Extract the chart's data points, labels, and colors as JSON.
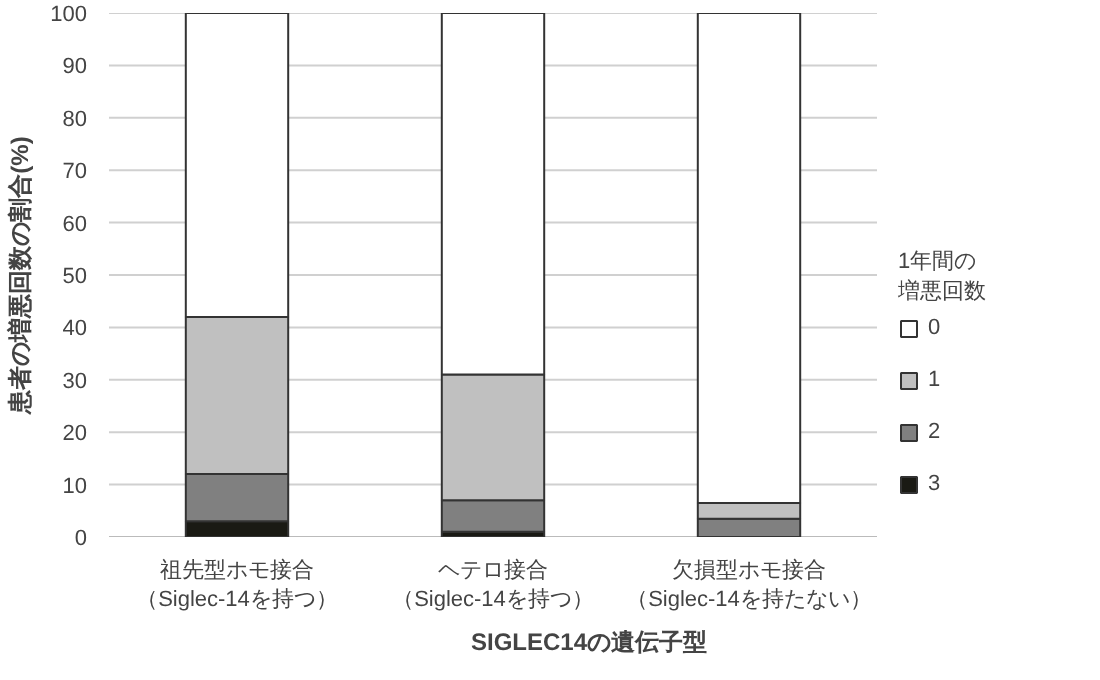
{
  "chart_data": {
    "type": "bar",
    "stacked": true,
    "categories": [
      "祖先型ホモ接合（Siglec-14を持つ）",
      "ヘテロ接合（Siglec-14を持つ）",
      "欠損型ホモ接合（Siglec-14を持たない）"
    ],
    "series": [
      {
        "name": "3",
        "color": "#1a1a14",
        "values": [
          3,
          1,
          0
        ]
      },
      {
        "name": "2",
        "color": "#808080",
        "values": [
          9,
          6,
          3.5
        ]
      },
      {
        "name": "1",
        "color": "#c0c0c0",
        "values": [
          30,
          24,
          3
        ]
      },
      {
        "name": "0",
        "color": "#ffffff",
        "values": [
          58,
          69,
          93.5
        ]
      }
    ],
    "xlabel": "SIGLEC14の遺伝子型",
    "ylabel": "患者の増悪回数の割合(%)",
    "legend_title": "1年間の増悪回数",
    "ylim": [
      0,
      100
    ],
    "yticks": [
      0,
      10,
      20,
      30,
      40,
      50,
      60,
      70,
      80,
      90,
      100
    ],
    "grid": "y",
    "legend": "right"
  }
}
